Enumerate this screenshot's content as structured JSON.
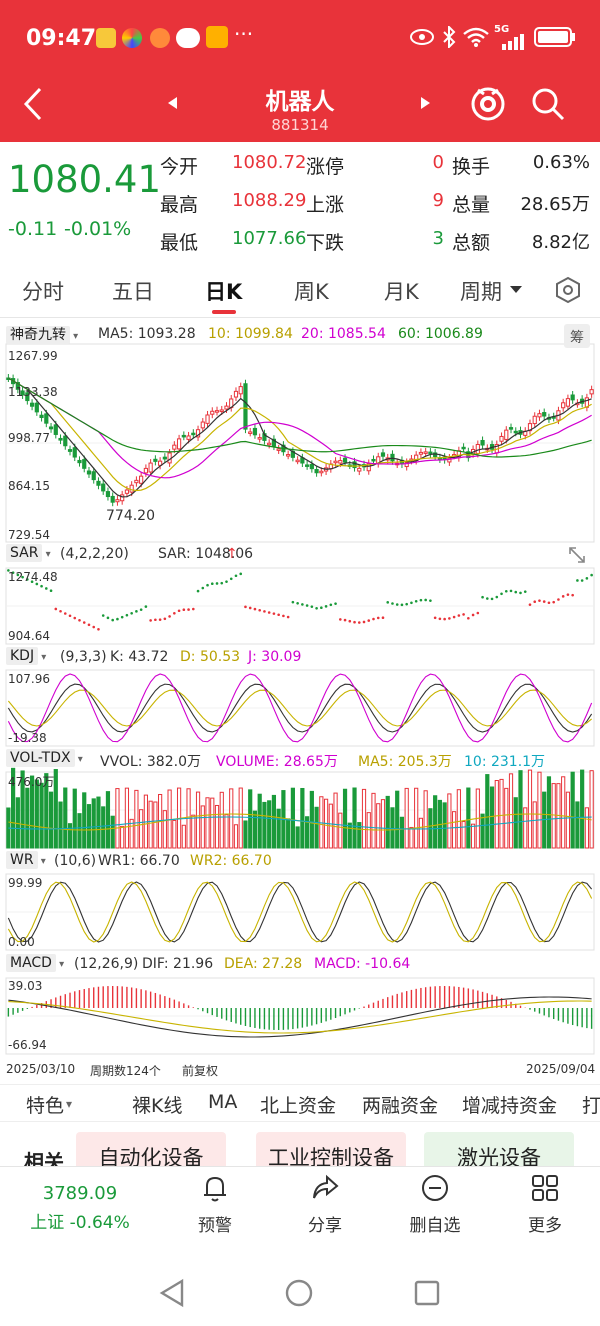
{
  "status_bar": {
    "time": "09:47",
    "network": "5G"
  },
  "nav": {
    "title": "机器人",
    "code": "881314"
  },
  "quote": {
    "price": "1080.41",
    "change": "-0.11",
    "change_pct": "-0.01%",
    "rows": [
      {
        "l1": "今开",
        "v1": "1080.72",
        "l2": "涨停",
        "v2": "0",
        "l3": "换手",
        "v3": "0.63%"
      },
      {
        "l1": "最高",
        "v1": "1088.29",
        "l2": "上涨",
        "v2": "9",
        "l3": "总量",
        "v3": "28.65万"
      },
      {
        "l1": "最低",
        "v1": "1077.66",
        "l2": "下跌",
        "v2": "3",
        "l3": "总额",
        "v3": "8.82亿"
      }
    ]
  },
  "tabs": [
    "分时",
    "五日",
    "日K",
    "周K",
    "月K",
    "周期"
  ],
  "active_tab": "日K",
  "indicators": {
    "main": {
      "name": "神奇九转",
      "ma5": "MA5: 1093.28",
      "ma10": "10: 1099.84",
      "ma20": "20: 1085.54",
      "ma60": "60: 1006.89",
      "badge": "筹",
      "y_top": "1267.99",
      "y_mid1": "1133.38",
      "y_mid2": "998.77",
      "y_mid3": "864.15",
      "y_bot": "729.54",
      "low_mark": "774.20"
    },
    "sar": {
      "name": "SAR",
      "params": "(4,2,2,20)",
      "value": "SAR: 1048.06",
      "y_top": "1274.48",
      "y_bot": "904.64"
    },
    "kdj": {
      "name": "KDJ",
      "params": "(9,3,3)",
      "k": "K: 43.72",
      "d": "D: 50.53",
      "j": "J: 30.09",
      "y_top": "107.96",
      "y_bot": "-19.38"
    },
    "vol": {
      "name": "VOL-TDX",
      "vvol": "VVOL: 382.0万",
      "volume": "VOLUME: 28.65万",
      "ma5": "MA5: 205.3万",
      "ma10": "10: 231.1万",
      "y_top": "476.0万"
    },
    "wr": {
      "name": "WR",
      "params": "(10,6)",
      "wr1": "WR1: 66.70",
      "wr2": "WR2: 66.70",
      "y_top": "99.99",
      "y_bot": "0.00"
    },
    "macd": {
      "name": "MACD",
      "params": "(12,26,9)",
      "dif": "DIF: 21.96",
      "dea": "DEA: 27.28",
      "macd": "MACD: -10.64",
      "y_top": "39.03",
      "y_bot": "-66.94"
    },
    "footer": {
      "start": "2025/03/10",
      "period": "周期数124个",
      "adjust": "前复权",
      "end": "2025/09/04"
    }
  },
  "sub_tabs": [
    "特色",
    "裸K线",
    "MA",
    "北上资金",
    "两融资金",
    "增减持资金",
    "打"
  ],
  "related": {
    "label": "相关",
    "chips": [
      "自动化设备",
      "工业控制设备",
      "激光设备"
    ]
  },
  "bottom_bar": {
    "index_value": "3789.09",
    "index_label": "上证 -0.64%",
    "items": [
      "预警",
      "分享",
      "删自选",
      "更多"
    ]
  },
  "colors": {
    "brand_red": "#e8333a",
    "up": "#e8333a",
    "down": "#1a9a3a",
    "ma5": "#333333",
    "ma10": "#c8b400",
    "ma20": "#d000d0",
    "ma60": "#1a8a1a"
  }
}
